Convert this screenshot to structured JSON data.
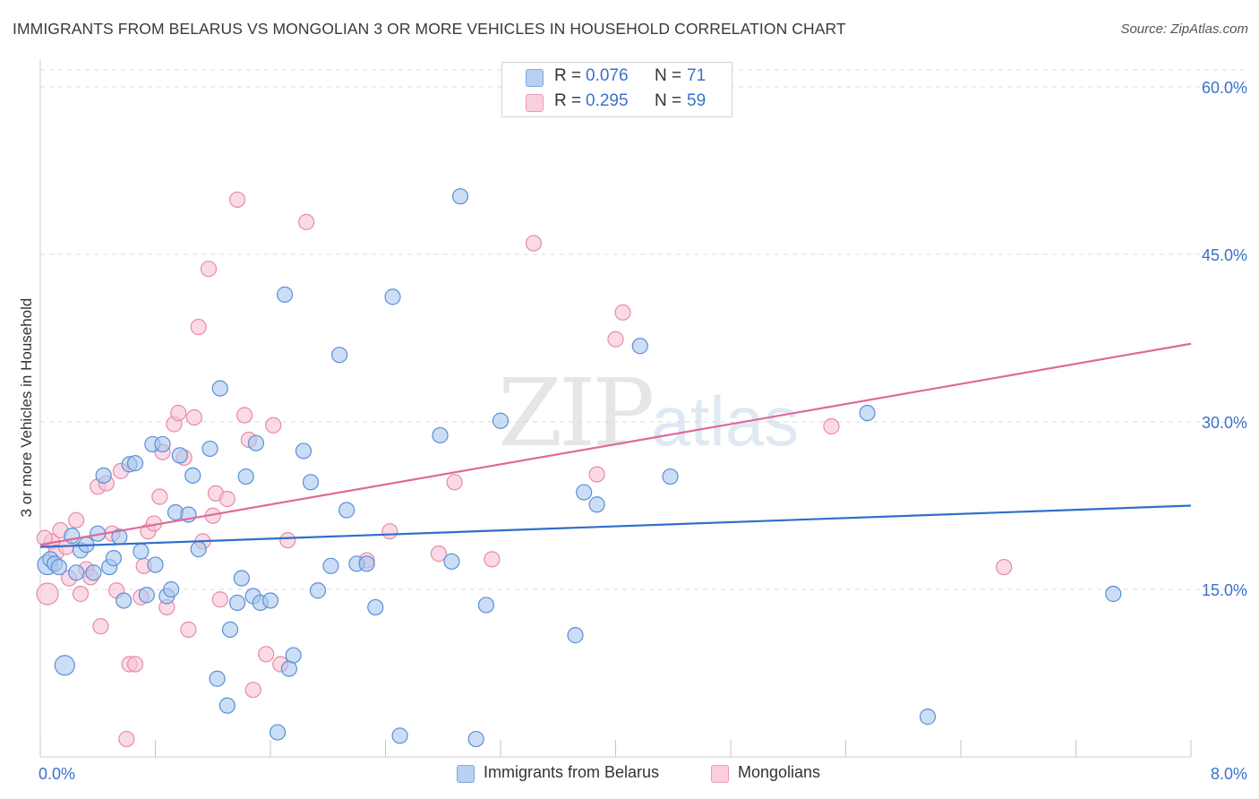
{
  "header": {
    "title": "IMMIGRANTS FROM BELARUS VS MONGOLIAN 3 OR MORE VEHICLES IN HOUSEHOLD CORRELATION CHART",
    "source": "Source: ZipAtlas.com"
  },
  "watermark": {
    "part1": "ZIP",
    "part2": "atlas"
  },
  "legend": {
    "r_label": "R =",
    "n_label": "N =",
    "rows": [
      {
        "r": "0.076",
        "n": "71",
        "color": "#a9c8ef"
      },
      {
        "r": "0.295",
        "n": "59",
        "color": "#f5b8cb"
      }
    ]
  },
  "bottom_legend": {
    "series1": "Immigrants from Belarus",
    "series2": "Mongolians"
  },
  "colors": {
    "blue_fill": "#a9c8ef",
    "blue_stroke": "#5b8fd6",
    "blue_line": "#2f6fcc",
    "pink_fill": "#f7c3d3",
    "pink_stroke": "#e98aa8",
    "pink_line": "#e0699a",
    "tick_text": "#3a72c8",
    "grid": "#d8d8d8"
  },
  "chart_data": {
    "type": "scatter",
    "title": "IMMIGRANTS FROM BELARUS VS MONGOLIAN 3 OR MORE VEHICLES IN HOUSEHOLD CORRELATION CHART",
    "xlabel": "",
    "ylabel": "3 or more Vehicles in Household",
    "xlim": [
      0,
      8
    ],
    "ylim": [
      0,
      60
    ],
    "x_tick_labels": [
      "0.0%",
      "8.0%"
    ],
    "y_ticks": [
      15,
      30,
      45,
      60
    ],
    "y_tick_labels": [
      "15.0%",
      "30.0%",
      "45.0%",
      "60.0%"
    ],
    "grid": true,
    "legend_position": "top-center",
    "series": [
      {
        "name": "Immigrants from Belarus",
        "R": 0.076,
        "N": 71,
        "trend": {
          "x": [
            0,
            8
          ],
          "y": [
            18.8,
            22.5
          ]
        },
        "points": [
          [
            0.05,
            17.2
          ],
          [
            0.07,
            17.7
          ],
          [
            0.1,
            17.3
          ],
          [
            0.13,
            17.0
          ],
          [
            0.17,
            8.2
          ],
          [
            0.22,
            19.8
          ],
          [
            0.25,
            16.5
          ],
          [
            0.28,
            18.5
          ],
          [
            0.32,
            19.0
          ],
          [
            0.37,
            16.5
          ],
          [
            0.4,
            20.0
          ],
          [
            0.44,
            25.2
          ],
          [
            0.48,
            17.0
          ],
          [
            0.51,
            17.8
          ],
          [
            0.55,
            19.7
          ],
          [
            0.58,
            14.0
          ],
          [
            0.62,
            26.2
          ],
          [
            0.66,
            26.3
          ],
          [
            0.7,
            18.4
          ],
          [
            0.74,
            14.5
          ],
          [
            0.78,
            28.0
          ],
          [
            0.8,
            17.2
          ],
          [
            0.85,
            28.0
          ],
          [
            0.88,
            14.4
          ],
          [
            0.91,
            15.0
          ],
          [
            0.94,
            21.9
          ],
          [
            0.97,
            27.0
          ],
          [
            1.03,
            21.7
          ],
          [
            1.06,
            25.2
          ],
          [
            1.1,
            18.6
          ],
          [
            1.18,
            27.6
          ],
          [
            1.23,
            7.0
          ],
          [
            1.25,
            33.0
          ],
          [
            1.3,
            4.6
          ],
          [
            1.32,
            11.4
          ],
          [
            1.37,
            13.8
          ],
          [
            1.4,
            16.0
          ],
          [
            1.43,
            25.1
          ],
          [
            1.48,
            14.4
          ],
          [
            1.5,
            28.1
          ],
          [
            1.53,
            13.8
          ],
          [
            1.6,
            14.0
          ],
          [
            1.65,
            2.2
          ],
          [
            1.7,
            41.4
          ],
          [
            1.73,
            7.9
          ],
          [
            1.76,
            9.1
          ],
          [
            1.83,
            27.4
          ],
          [
            1.88,
            24.6
          ],
          [
            1.93,
            14.9
          ],
          [
            2.02,
            17.1
          ],
          [
            2.08,
            36.0
          ],
          [
            2.13,
            22.1
          ],
          [
            2.2,
            17.3
          ],
          [
            2.27,
            17.3
          ],
          [
            2.33,
            13.4
          ],
          [
            2.45,
            41.2
          ],
          [
            2.5,
            1.9
          ],
          [
            2.78,
            28.8
          ],
          [
            2.86,
            17.5
          ],
          [
            2.92,
            50.2
          ],
          [
            3.03,
            1.6
          ],
          [
            3.1,
            13.6
          ],
          [
            3.2,
            30.1
          ],
          [
            3.72,
            10.9
          ],
          [
            3.78,
            23.7
          ],
          [
            3.87,
            22.6
          ],
          [
            4.17,
            36.8
          ],
          [
            4.38,
            25.1
          ],
          [
            5.75,
            30.8
          ],
          [
            6.17,
            3.6
          ],
          [
            7.46,
            14.6
          ]
        ]
      },
      {
        "name": "Mongolians",
        "R": 0.295,
        "N": 59,
        "trend": {
          "x": [
            0,
            8
          ],
          "y": [
            19.0,
            37.0
          ]
        },
        "points": [
          [
            0.05,
            14.6
          ],
          [
            0.08,
            19.3
          ],
          [
            0.11,
            18.3
          ],
          [
            0.14,
            20.3
          ],
          [
            0.18,
            18.8
          ],
          [
            0.2,
            16.0
          ],
          [
            0.25,
            21.2
          ],
          [
            0.28,
            14.6
          ],
          [
            0.32,
            16.8
          ],
          [
            0.35,
            16.1
          ],
          [
            0.4,
            24.2
          ],
          [
            0.42,
            11.7
          ],
          [
            0.46,
            24.5
          ],
          [
            0.5,
            20.0
          ],
          [
            0.53,
            14.9
          ],
          [
            0.56,
            25.6
          ],
          [
            0.6,
            1.6
          ],
          [
            0.62,
            8.3
          ],
          [
            0.66,
            8.3
          ],
          [
            0.7,
            14.3
          ],
          [
            0.72,
            17.1
          ],
          [
            0.75,
            20.2
          ],
          [
            0.79,
            20.9
          ],
          [
            0.83,
            23.3
          ],
          [
            0.85,
            27.3
          ],
          [
            0.88,
            13.4
          ],
          [
            0.93,
            29.8
          ],
          [
            0.96,
            30.8
          ],
          [
            1.0,
            26.8
          ],
          [
            1.03,
            11.4
          ],
          [
            1.07,
            30.4
          ],
          [
            1.1,
            38.5
          ],
          [
            1.13,
            19.3
          ],
          [
            1.17,
            43.7
          ],
          [
            1.2,
            21.6
          ],
          [
            1.22,
            23.6
          ],
          [
            1.25,
            14.1
          ],
          [
            1.3,
            23.1
          ],
          [
            1.37,
            49.9
          ],
          [
            1.42,
            30.6
          ],
          [
            1.45,
            28.4
          ],
          [
            1.48,
            6.0
          ],
          [
            1.57,
            9.2
          ],
          [
            1.62,
            29.7
          ],
          [
            1.67,
            8.3
          ],
          [
            1.72,
            19.4
          ],
          [
            1.85,
            47.9
          ],
          [
            2.27,
            17.6
          ],
          [
            2.43,
            20.2
          ],
          [
            2.77,
            18.2
          ],
          [
            2.88,
            24.6
          ],
          [
            3.14,
            17.7
          ],
          [
            3.43,
            46.0
          ],
          [
            3.87,
            25.3
          ],
          [
            4.0,
            37.4
          ],
          [
            4.05,
            39.8
          ],
          [
            5.5,
            29.6
          ],
          [
            6.7,
            17.0
          ],
          [
            0.03,
            19.6
          ]
        ]
      }
    ]
  }
}
